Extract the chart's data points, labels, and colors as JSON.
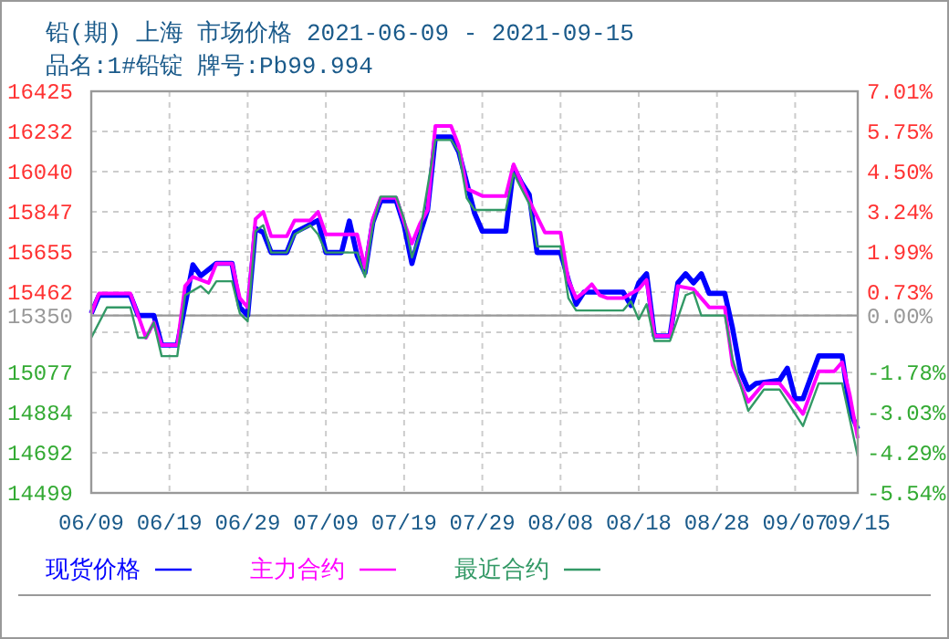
{
  "chart_data": {
    "type": "line",
    "title": "铅(期) 上海 市场价格 2021-06-09 - 2021-09-15",
    "subtitle": "品名:1#铅锭 牌号:Pb99.994",
    "xlim": [
      "2021-06-09",
      "2021-09-15"
    ],
    "xticks": [
      {
        "value": "2021-06-09",
        "label": "06/09"
      },
      {
        "value": "2021-06-19",
        "label": "06/19"
      },
      {
        "value": "2021-06-29",
        "label": "06/29"
      },
      {
        "value": "2021-07-09",
        "label": "07/09"
      },
      {
        "value": "2021-07-19",
        "label": "07/19"
      },
      {
        "value": "2021-07-29",
        "label": "07/29"
      },
      {
        "value": "2021-08-08",
        "label": "08/08"
      },
      {
        "value": "2021-08-18",
        "label": "08/18"
      },
      {
        "value": "2021-08-28",
        "label": "08/28"
      },
      {
        "value": "2021-09-07",
        "label": "09/07"
      },
      {
        "value": "2021-09-15",
        "label": "09/15"
      }
    ],
    "ylim": [
      14499,
      16425
    ],
    "yticks": [
      16425,
      16232,
      16040,
      15847,
      15655,
      15462,
      15350,
      {
        "value": 15269,
        "label": null
      },
      15077,
      14884,
      14692,
      14499
    ],
    "y2lim": [
      -5.54,
      7.01
    ],
    "y2ticks": [
      {
        "value": 7.01,
        "label": "7.01%"
      },
      {
        "value": 5.75,
        "label": "5.75%"
      },
      {
        "value": 4.5,
        "label": "4.50%"
      },
      {
        "value": 3.24,
        "label": "3.24%"
      },
      {
        "value": 1.99,
        "label": "1.99%"
      },
      {
        "value": 0.73,
        "label": "0.73%"
      },
      {
        "value": 0,
        "label": "0.00%"
      },
      {
        "value": -1.78,
        "label": "-1.78%"
      },
      {
        "value": -3.03,
        "label": "-3.03%"
      },
      {
        "value": -4.29,
        "label": "-4.29%"
      },
      {
        "value": -5.54,
        "label": "-5.54%"
      }
    ],
    "ref_lines": [
      {
        "axis": "y",
        "value": 15350,
        "color": "#999999"
      }
    ],
    "grid": true,
    "legend": "bottom",
    "marker": "none",
    "line_style": "solid",
    "series": [
      {
        "name": "现货价格",
        "color": "#0000ff",
        "x": [
          "2021-06-09",
          "2021-06-10",
          "2021-06-14",
          "2021-06-15",
          "2021-06-17",
          "2021-06-18",
          "2021-06-20",
          "2021-06-22",
          "2021-06-23",
          "2021-06-25",
          "2021-06-27",
          "2021-06-28",
          "2021-06-29",
          "2021-06-30",
          "2021-07-01",
          "2021-07-02",
          "2021-07-04",
          "2021-07-05",
          "2021-07-08",
          "2021-07-09",
          "2021-07-11",
          "2021-07-12",
          "2021-07-13",
          "2021-07-14",
          "2021-07-15",
          "2021-07-16",
          "2021-07-18",
          "2021-07-19",
          "2021-07-20",
          "2021-07-21",
          "2021-07-22",
          "2021-07-23",
          "2021-07-25",
          "2021-07-26",
          "2021-07-28",
          "2021-07-29",
          "2021-08-01",
          "2021-08-02",
          "2021-08-03",
          "2021-08-04",
          "2021-08-05",
          "2021-08-08",
          "2021-08-09",
          "2021-08-10",
          "2021-08-11",
          "2021-08-16",
          "2021-08-17",
          "2021-08-18",
          "2021-08-19",
          "2021-08-20",
          "2021-08-22",
          "2021-08-23",
          "2021-08-24",
          "2021-08-25",
          "2021-08-26",
          "2021-08-27",
          "2021-08-29",
          "2021-08-30",
          "2021-08-31",
          "2021-09-01",
          "2021-09-02",
          "2021-09-05",
          "2021-09-06",
          "2021-09-07",
          "2021-09-08",
          "2021-09-10",
          "2021-09-13",
          "2021-09-14",
          "2021-09-15"
        ],
        "values": [
          15360,
          15447,
          15447,
          15350,
          15350,
          15208,
          15208,
          15593,
          15540,
          15600,
          15600,
          15389,
          15350,
          15768,
          15748,
          15652,
          15652,
          15748,
          15806,
          15652,
          15652,
          15803,
          15637,
          15555,
          15797,
          15900,
          15900,
          15783,
          15599,
          15739,
          15856,
          16206,
          16206,
          16133,
          15841,
          15754,
          15754,
          16060,
          15987,
          15929,
          15652,
          15652,
          15520,
          15404,
          15462,
          15462,
          15398,
          15506,
          15550,
          15252,
          15252,
          15506,
          15550,
          15506,
          15550,
          15456,
          15456,
          15287,
          15082,
          14995,
          15024,
          15039,
          15097,
          14951,
          14951,
          15156,
          15156,
          14893,
          14805
        ]
      },
      {
        "name": "主力合约",
        "color": "#ff00ff",
        "x": [
          "2021-06-09",
          "2021-06-10",
          "2021-06-14",
          "2021-06-16",
          "2021-06-17",
          "2021-06-18",
          "2021-06-20",
          "2021-06-21",
          "2021-06-22",
          "2021-06-24",
          "2021-06-25",
          "2021-06-27",
          "2021-06-28",
          "2021-06-29",
          "2021-06-30",
          "2021-07-01",
          "2021-07-02",
          "2021-07-04",
          "2021-07-05",
          "2021-07-07",
          "2021-07-08",
          "2021-07-09",
          "2021-07-13",
          "2021-07-14",
          "2021-07-15",
          "2021-07-16",
          "2021-07-18",
          "2021-07-19",
          "2021-07-20",
          "2021-07-21",
          "2021-07-22",
          "2021-07-23",
          "2021-07-25",
          "2021-07-26",
          "2021-07-27",
          "2021-07-29",
          "2021-08-01",
          "2021-08-02",
          "2021-08-04",
          "2021-08-06",
          "2021-08-08",
          "2021-08-09",
          "2021-08-10",
          "2021-08-11",
          "2021-08-12",
          "2021-08-13",
          "2021-08-14",
          "2021-08-16",
          "2021-08-18",
          "2021-08-19",
          "2021-08-20",
          "2021-08-22",
          "2021-08-23",
          "2021-08-25",
          "2021-08-27",
          "2021-08-29",
          "2021-08-30",
          "2021-09-01",
          "2021-09-03",
          "2021-09-05",
          "2021-09-08",
          "2021-09-10",
          "2021-09-12",
          "2021-09-13",
          "2021-09-14",
          "2021-09-15"
        ],
        "values": [
          15360,
          15456,
          15456,
          15243,
          15316,
          15208,
          15208,
          15491,
          15535,
          15506,
          15599,
          15599,
          15433,
          15389,
          15812,
          15847,
          15730,
          15730,
          15806,
          15806,
          15847,
          15739,
          15739,
          15579,
          15812,
          15914,
          15914,
          15797,
          15695,
          15788,
          15856,
          16259,
          16259,
          16162,
          15958,
          15923,
          15923,
          16075,
          15900,
          15748,
          15748,
          15520,
          15433,
          15462,
          15500,
          15447,
          15433,
          15433,
          15476,
          15520,
          15252,
          15252,
          15491,
          15476,
          15389,
          15389,
          15112,
          14936,
          15024,
          15024,
          14878,
          15082,
          15082,
          15126,
          14966,
          14761
        ]
      },
      {
        "name": "最近合约",
        "color": "#339966",
        "x": [
          "2021-06-09",
          "2021-06-11",
          "2021-06-14",
          "2021-06-15",
          "2021-06-16",
          "2021-06-17",
          "2021-06-18",
          "2021-06-20",
          "2021-06-21",
          "2021-06-23",
          "2021-06-24",
          "2021-06-25",
          "2021-06-27",
          "2021-06-28",
          "2021-06-29",
          "2021-06-30",
          "2021-07-01",
          "2021-07-02",
          "2021-07-04",
          "2021-07-05",
          "2021-07-07",
          "2021-07-08",
          "2021-07-09",
          "2021-07-13",
          "2021-07-14",
          "2021-07-15",
          "2021-07-16",
          "2021-07-18",
          "2021-07-19",
          "2021-07-20",
          "2021-07-21",
          "2021-07-23",
          "2021-07-25",
          "2021-07-26",
          "2021-07-27",
          "2021-07-28",
          "2021-08-01",
          "2021-08-02",
          "2021-08-04",
          "2021-08-05",
          "2021-08-08",
          "2021-08-09",
          "2021-08-10",
          "2021-08-16",
          "2021-08-17",
          "2021-08-18",
          "2021-08-19",
          "2021-08-20",
          "2021-08-22",
          "2021-08-24",
          "2021-08-25",
          "2021-08-26",
          "2021-08-29",
          "2021-08-30",
          "2021-09-01",
          "2021-09-03",
          "2021-09-05",
          "2021-09-06",
          "2021-09-08",
          "2021-09-10",
          "2021-09-13",
          "2021-09-14",
          "2021-09-15"
        ],
        "values": [
          15243,
          15389,
          15389,
          15243,
          15243,
          15316,
          15155,
          15155,
          15447,
          15491,
          15456,
          15514,
          15514,
          15360,
          15322,
          15754,
          15783,
          15652,
          15652,
          15739,
          15783,
          15739,
          15652,
          15652,
          15535,
          15783,
          15920,
          15920,
          15812,
          15628,
          15739,
          16192,
          16192,
          16133,
          15914,
          15856,
          15856,
          16031,
          15885,
          15681,
          15681,
          15433,
          15374,
          15374,
          15418,
          15331,
          15404,
          15228,
          15228,
          15447,
          15462,
          15350,
          15350,
          15141,
          14893,
          14995,
          14995,
          14937,
          14820,
          15024,
          15024,
          14849,
          14674
        ]
      }
    ]
  }
}
